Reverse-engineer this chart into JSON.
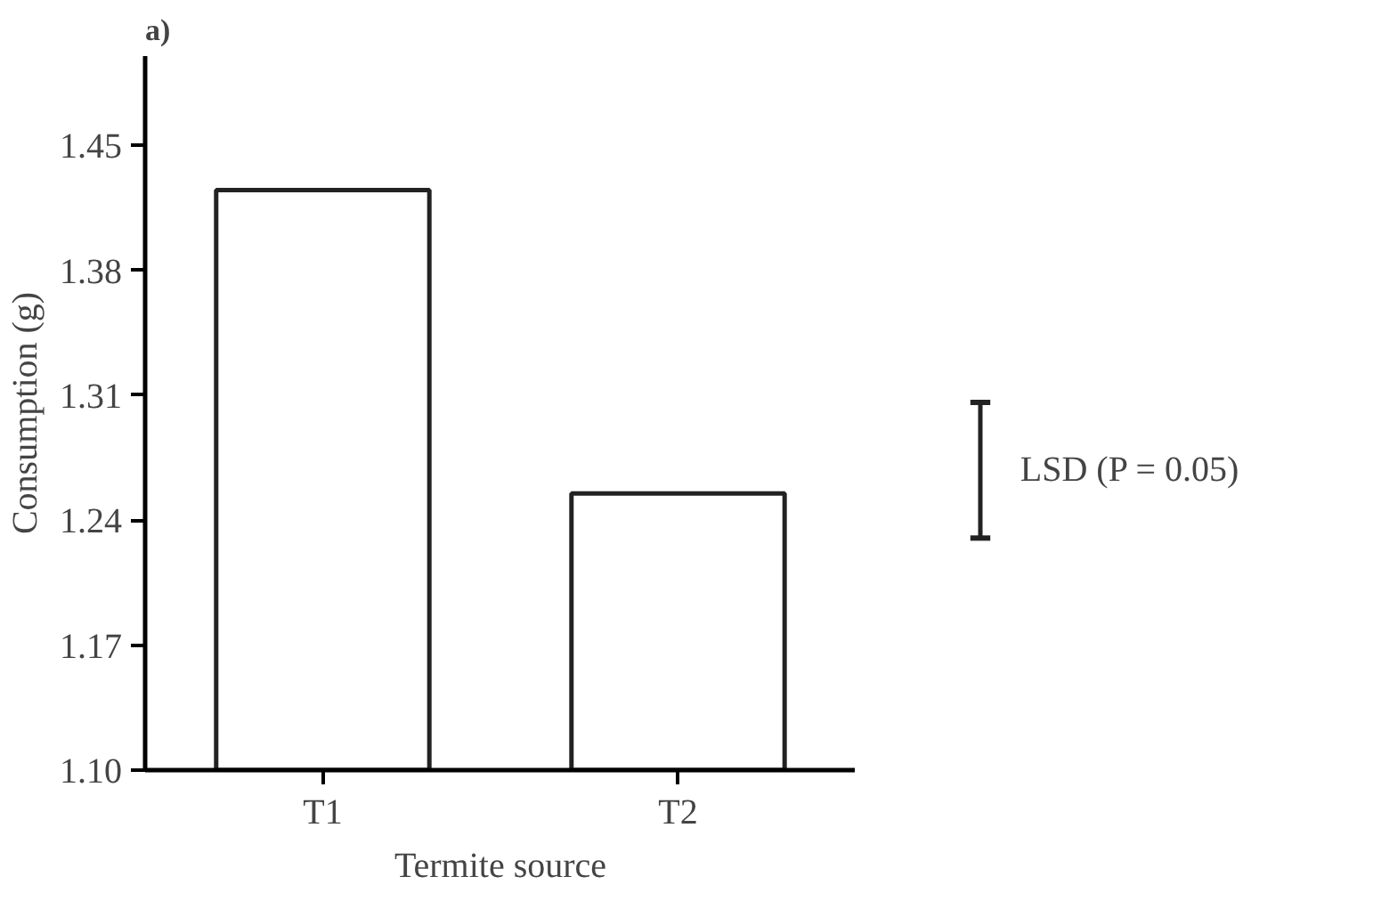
{
  "chart_data": {
    "type": "bar",
    "title": "a)",
    "xlabel": "Termite source",
    "ylabel": "Consumption (g)",
    "categories": [
      "T1",
      "T2"
    ],
    "values": [
      1.425,
      1.255
    ],
    "color": "#ffffff",
    "ylim": [
      1.1,
      1.5
    ],
    "yticks": [
      {
        "value": 1.1,
        "label": "1.10"
      },
      1.17,
      1.24,
      1.31,
      1.38,
      1.45
    ],
    "annotations": [
      "LSD (P = 0.05)"
    ],
    "grid": false
  }
}
